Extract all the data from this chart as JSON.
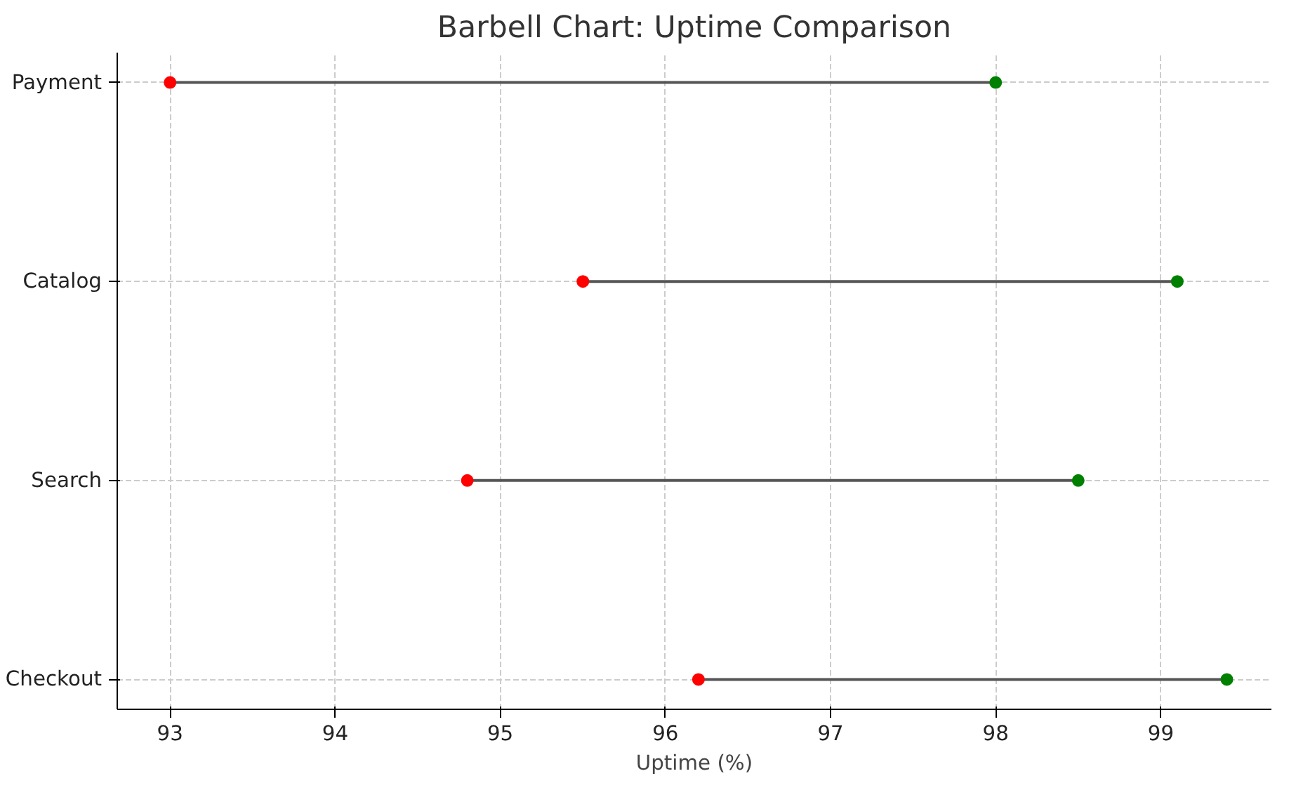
{
  "chart_data": {
    "type": "scatter",
    "title": "Barbell Chart: Uptime Comparison",
    "xlabel": "Uptime (%)",
    "orientation": "horizontal",
    "categories": [
      "Payment",
      "Catalog",
      "Search",
      "Checkout"
    ],
    "series": [
      {
        "color": "#ff0000",
        "values": [
          93.0,
          95.5,
          94.8,
          96.2
        ]
      },
      {
        "color": "#008000",
        "values": [
          98.0,
          99.1,
          98.5,
          99.4
        ]
      }
    ],
    "xlim": [
      92.68,
      99.67
    ],
    "xticks": [
      93,
      94,
      95,
      96,
      97,
      98,
      99
    ],
    "grid": true,
    "marker": "circle"
  }
}
